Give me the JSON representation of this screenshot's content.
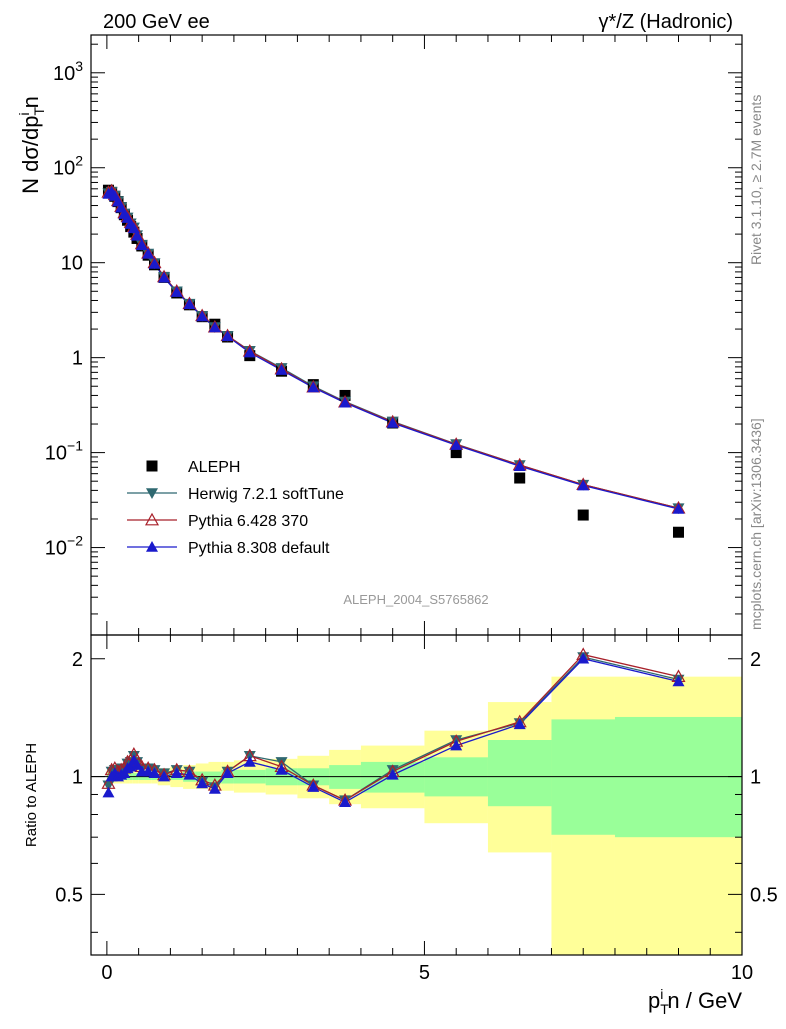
{
  "header": {
    "left_title": "200 GeV ee",
    "right_title": "γ*/Z (Hadronic)"
  },
  "side_text": {
    "rivet": "Rivet 3.1.10, ≥ 2.7M events",
    "mcplots": "mcplots.cern.ch [arXiv:1306.3436]"
  },
  "watermark": "ALEPH_2004_S5765862",
  "legend": [
    {
      "label": "ALEPH",
      "marker": "square",
      "color": "#000000"
    },
    {
      "label": "Herwig 7.2.1 softTune",
      "marker": "triangle-down",
      "color": "#2f6870"
    },
    {
      "label": "Pythia 6.428 370",
      "marker": "triangle-open",
      "color": "#a8202a"
    },
    {
      "label": "Pythia 8.308 default",
      "marker": "triangle-up",
      "color": "#1a1acc"
    }
  ],
  "chart_data": [
    {
      "type": "scatter",
      "name": "main",
      "ylabel": "N dσ/dp_T^i n",
      "yscale": "log",
      "ylim": [
        0.0012,
        2500
      ],
      "xlim": [
        -0.25,
        10
      ],
      "y_ticks": [
        "10^-2",
        "10^-1",
        "1",
        "10",
        "10^2",
        "10^3"
      ],
      "x": [
        0.025,
        0.075,
        0.125,
        0.175,
        0.225,
        0.275,
        0.325,
        0.375,
        0.425,
        0.475,
        0.55,
        0.65,
        0.75,
        0.9,
        1.1,
        1.3,
        1.5,
        1.7,
        1.9,
        2.25,
        2.75,
        3.25,
        3.75,
        4.5,
        5.5,
        6.5,
        7.5,
        9.0
      ],
      "series": [
        {
          "name": "ALEPH",
          "values": [
            58,
            55,
            50,
            44,
            38,
            32,
            28,
            24,
            21,
            18,
            15,
            12,
            9.5,
            7.0,
            4.8,
            3.6,
            2.7,
            2.25,
            1.65,
            1.05,
            0.72,
            0.52,
            0.4,
            0.205,
            0.1,
            0.054,
            0.022,
            0.0145
          ]
        },
        {
          "name": "Herwig 7.2.1 softTune",
          "values": [
            54,
            56,
            51,
            44.5,
            38.5,
            33,
            30,
            26,
            23.5,
            19.5,
            15.5,
            12.5,
            9.9,
            7.1,
            5.0,
            3.7,
            2.75,
            2.1,
            1.7,
            1.18,
            0.78,
            0.5,
            0.345,
            0.213,
            0.123,
            0.074,
            0.046,
            0.026
          ]
        },
        {
          "name": "Pythia 6.428 370",
          "values": [
            55,
            57,
            52,
            45,
            39,
            33.5,
            30.5,
            26.5,
            24,
            19.8,
            15.8,
            12.6,
            10.0,
            7.1,
            5.0,
            3.7,
            2.76,
            2.1,
            1.7,
            1.17,
            0.76,
            0.49,
            0.34,
            0.21,
            0.122,
            0.074,
            0.046,
            0.026
          ]
        },
        {
          "name": "Pythia 8.308 default",
          "values": [
            53,
            55.5,
            50.5,
            44,
            38,
            32.5,
            29.5,
            25.5,
            23,
            19.2,
            15.3,
            12.4,
            9.7,
            6.95,
            4.9,
            3.65,
            2.72,
            2.08,
            1.68,
            1.13,
            0.74,
            0.485,
            0.335,
            0.205,
            0.12,
            0.072,
            0.045,
            0.0255
          ]
        }
      ]
    },
    {
      "type": "line",
      "name": "ratio",
      "xlabel": "p_T^i n / GeV",
      "ylabel": "Ratio to ALEPH",
      "ylim": [
        0.35,
        2.3
      ],
      "xlim": [
        -0.25,
        10
      ],
      "x_ticks": [
        "0",
        "5",
        "10"
      ],
      "y_ticks": [
        "0.5",
        "1",
        "2"
      ],
      "x": [
        0.025,
        0.075,
        0.125,
        0.175,
        0.225,
        0.275,
        0.325,
        0.375,
        0.425,
        0.475,
        0.55,
        0.65,
        0.75,
        0.9,
        1.1,
        1.3,
        1.5,
        1.7,
        1.9,
        2.25,
        2.75,
        3.25,
        3.75,
        4.5,
        5.5,
        6.5,
        7.5,
        9.0
      ],
      "series": [
        {
          "name": "Herwig 7.2.1 softTune",
          "values": [
            0.95,
            1.03,
            1.04,
            1.04,
            1.05,
            1.05,
            1.08,
            1.09,
            1.13,
            1.09,
            1.05,
            1.05,
            1.04,
            1.02,
            1.04,
            1.03,
            0.97,
            0.94,
            1.03,
            1.13,
            1.09,
            0.95,
            0.87,
            1.04,
            1.24,
            1.37,
            2.02,
            1.77
          ]
        },
        {
          "name": "Pythia 6.428 370",
          "values": [
            0.96,
            1.04,
            1.05,
            1.03,
            1.04,
            1.05,
            1.09,
            1.1,
            1.14,
            1.1,
            1.06,
            1.05,
            1.04,
            1.01,
            1.04,
            1.03,
            0.98,
            0.95,
            1.03,
            1.13,
            1.06,
            0.95,
            0.87,
            1.03,
            1.23,
            1.38,
            2.05,
            1.8
          ]
        },
        {
          "name": "Pythia 8.308 default",
          "values": [
            0.91,
            1.0,
            1.02,
            1.0,
            1.01,
            1.02,
            1.05,
            1.06,
            1.1,
            1.07,
            1.03,
            1.03,
            1.02,
            1.0,
            1.02,
            1.01,
            0.96,
            0.93,
            1.02,
            1.09,
            1.04,
            0.94,
            0.86,
            1.01,
            1.2,
            1.36,
            2.0,
            1.75
          ]
        }
      ],
      "bands": {
        "x_edges": [
          0.0,
          0.05,
          0.1,
          0.15,
          0.2,
          0.25,
          0.3,
          0.35,
          0.4,
          0.45,
          0.5,
          0.6,
          0.7,
          0.8,
          1.0,
          1.2,
          1.4,
          1.6,
          1.8,
          2.0,
          2.5,
          3.0,
          3.5,
          4.0,
          5.0,
          6.0,
          7.0,
          8.0,
          10.0
        ],
        "inner_low": [
          0.98,
          0.98,
          0.98,
          0.98,
          0.98,
          0.98,
          0.98,
          0.98,
          0.98,
          0.98,
          0.98,
          0.98,
          0.98,
          0.98,
          0.98,
          0.97,
          0.97,
          0.97,
          0.96,
          0.96,
          0.95,
          0.95,
          0.93,
          0.91,
          0.89,
          0.84,
          0.71,
          0.7
        ],
        "inner_high": [
          1.02,
          1.02,
          1.02,
          1.02,
          1.02,
          1.02,
          1.02,
          1.02,
          1.02,
          1.02,
          1.02,
          1.02,
          1.02,
          1.02,
          1.02,
          1.03,
          1.03,
          1.03,
          1.04,
          1.04,
          1.05,
          1.05,
          1.07,
          1.09,
          1.12,
          1.24,
          1.4,
          1.42
        ],
        "outer_low": [
          0.96,
          0.96,
          0.96,
          0.96,
          0.96,
          0.96,
          0.96,
          0.96,
          0.96,
          0.96,
          0.96,
          0.96,
          0.96,
          0.95,
          0.94,
          0.93,
          0.93,
          0.92,
          0.92,
          0.91,
          0.9,
          0.88,
          0.85,
          0.83,
          0.76,
          0.64,
          0.3,
          0.3
        ],
        "outer_high": [
          1.04,
          1.04,
          1.04,
          1.04,
          1.04,
          1.04,
          1.04,
          1.04,
          1.04,
          1.04,
          1.04,
          1.04,
          1.04,
          1.05,
          1.06,
          1.07,
          1.08,
          1.09,
          1.09,
          1.1,
          1.11,
          1.13,
          1.17,
          1.2,
          1.31,
          1.55,
          1.8,
          1.8
        ],
        "inner_color": "#99ff99",
        "outer_color": "#ffff99"
      }
    }
  ]
}
